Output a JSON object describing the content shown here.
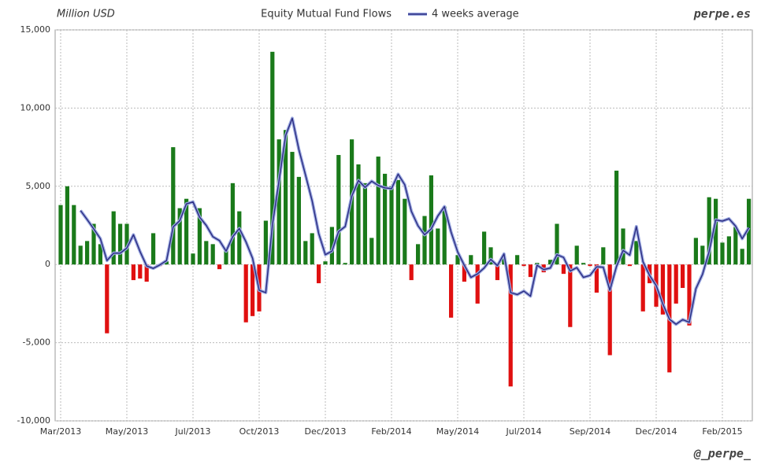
{
  "chart_data": {
    "type": "bar",
    "title": "Equity Mutual Fund Flows",
    "y_label": "Million USD",
    "brand": "perpe.es",
    "credit": "@_perpe_",
    "positive_color": "#1a7a1a",
    "negative_color": "#e01010",
    "grid": true,
    "categories": [
      "Mar/2013",
      null,
      null,
      null,
      null,
      null,
      null,
      null,
      null,
      null,
      "May/2013",
      null,
      null,
      null,
      null,
      null,
      null,
      null,
      null,
      null,
      "Jul/2013",
      null,
      null,
      null,
      null,
      null,
      null,
      null,
      null,
      null,
      "Oct/2013",
      null,
      null,
      null,
      null,
      null,
      null,
      null,
      null,
      null,
      "Dec/2013",
      null,
      null,
      null,
      null,
      null,
      null,
      null,
      null,
      null,
      "Feb/2014",
      null,
      null,
      null,
      null,
      null,
      null,
      null,
      null,
      null,
      "May/2014",
      null,
      null,
      null,
      null,
      null,
      null,
      null,
      null,
      null,
      "Jul/2014",
      null,
      null,
      null,
      null,
      null,
      null,
      null,
      null,
      null,
      "Sep/2014",
      null,
      null,
      null,
      null,
      null,
      null,
      null,
      null,
      null,
      "Dec/2014",
      null,
      null,
      null,
      null,
      null,
      null,
      null,
      null,
      null,
      "Feb/2015",
      null,
      null,
      null,
      null
    ],
    "values": [
      3800,
      5000,
      3800,
      1200,
      1500,
      2600,
      1300,
      -4400,
      3400,
      2600,
      2600,
      -1000,
      -900,
      -1100,
      2000,
      -100,
      200,
      7500,
      3600,
      4200,
      700,
      3600,
      1500,
      1300,
      -300,
      900,
      5200,
      3400,
      -3700,
      -3300,
      -3000,
      2800,
      13600,
      8000,
      8600,
      7200,
      5600,
      1500,
      2000,
      -1200,
      200,
      2400,
      7000,
      100,
      8000,
      6400,
      5200,
      1700,
      6900,
      5800,
      5000,
      5400,
      4200,
      -1000,
      1300,
      3100,
      5700,
      2300,
      3700,
      -3400,
      600,
      -1100,
      600,
      -2500,
      2100,
      1100,
      -1000,
      500,
      -7800,
      600,
      -100,
      -800,
      100,
      -500,
      300,
      2600,
      -600,
      -4000,
      1200,
      100,
      -100,
      -1800,
      1100,
      -5800,
      6000,
      2300,
      -100,
      1500,
      -3000,
      -1200,
      -2700,
      -3200,
      -6900,
      -2500,
      -1500,
      -3900,
      1700,
      1200,
      4300,
      4200,
      1400,
      1800,
      2400,
      1000,
      4200
    ],
    "average": {
      "name": "4 weeks average",
      "color": "#2b2b80",
      "values": [
        null,
        null,
        null,
        3450,
        2875,
        2275,
        1650,
        250,
        725,
        725,
        1050,
        1900,
        825,
        -100,
        -250,
        -25,
        250,
        2400,
        2800,
        3875,
        4000,
        3025,
        2500,
        1775,
        1525,
        850,
        1775,
        2300,
        1450,
        400,
        -1650,
        -1800,
        2525,
        5350,
        8250,
        9350,
        7350,
        5725,
        4075,
        1975,
        625,
        850,
        2100,
        2425,
        4375,
        5375,
        4925,
        5325,
        5050,
        4900,
        4850,
        5775,
        5100,
        3400,
        2475,
        1900,
        2275,
        3100,
        3700,
        2075,
        800,
        -50,
        -825,
        -600,
        -225,
        325,
        -75,
        675,
        -1800,
        -1925,
        -1700,
        -2025,
        -50,
        -325,
        -225,
        625,
        450,
        -425,
        -200,
        -825,
        -700,
        -150,
        -175,
        -1650,
        -125,
        900,
        600,
        2425,
        175,
        -700,
        -1350,
        -2525,
        -3500,
        -3825,
        -3525,
        -3700,
        -1550,
        -625,
        825,
        2850,
        2775,
        2925,
        2450,
        1650,
        2350
      ]
    },
    "ylim": [
      -10000,
      15000
    ],
    "yticks": [
      {
        "value": -10000,
        "label": "-10,000"
      },
      {
        "value": -5000,
        "label": "-5,000"
      },
      0,
      {
        "value": 5000,
        "label": "5,000"
      },
      {
        "value": 10000,
        "label": "10,000"
      },
      {
        "value": 15000,
        "label": "15,000"
      }
    ]
  }
}
